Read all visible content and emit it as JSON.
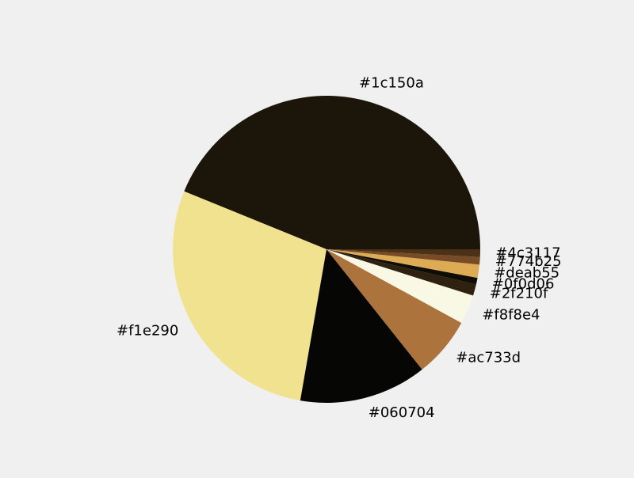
{
  "chart_data": {
    "type": "pie",
    "title": "",
    "start_angle": 0,
    "direction": "counterclockwise",
    "slices": [
      {
        "label": "#1c150a",
        "value": 44.1,
        "color": "#1c150a"
      },
      {
        "label": "#f1e290",
        "value": 28.6,
        "color": "#f1e290"
      },
      {
        "label": "#060704",
        "value": 13.5,
        "color": "#060704"
      },
      {
        "label": "#ac733d",
        "value": 6.4,
        "color": "#ac733d"
      },
      {
        "label": "#f8f8e4",
        "value": 3.1,
        "color": "#f8f8e4"
      },
      {
        "label": "#2f210f",
        "value": 1.2,
        "color": "#2f210f"
      },
      {
        "label": "#0f0d06",
        "value": 0.7,
        "color": "#0f0d06"
      },
      {
        "label": "#deab55",
        "value": 1.4,
        "color": "#deab55"
      },
      {
        "label": "#774b25",
        "value": 0.8,
        "color": "#774b25"
      },
      {
        "label": "#4c3117",
        "value": 0.8,
        "color": "#4c3117"
      }
    ]
  }
}
